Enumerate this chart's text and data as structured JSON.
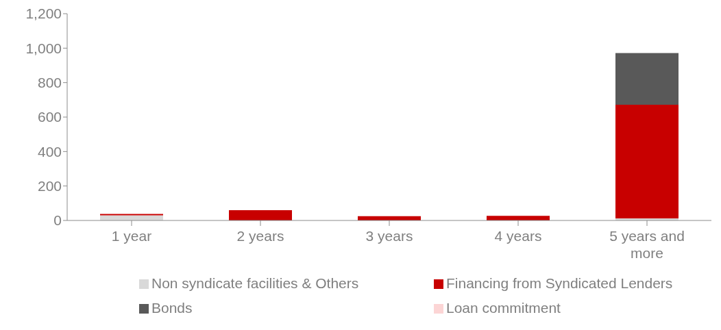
{
  "chart_data": {
    "type": "bar",
    "stacked": true,
    "categories": [
      "1 year",
      "2 years",
      "3 years",
      "4 years",
      "5 years and more"
    ],
    "series": [
      {
        "name": "Non syndicate facilities & Others",
        "color": "#d9d9d9",
        "values": [
          30,
          0,
          0,
          0,
          12
        ]
      },
      {
        "name": "Financing from Syndicated Lenders",
        "color": "#c80000",
        "values": [
          8,
          60,
          25,
          27,
          660
        ]
      },
      {
        "name": "Bonds",
        "color": "#595959",
        "values": [
          0,
          0,
          0,
          0,
          300
        ]
      },
      {
        "name": "Loan commitment",
        "color": "#fcd5d5",
        "values": [
          0,
          0,
          0,
          0,
          0
        ]
      }
    ],
    "ylim": [
      0,
      1200
    ],
    "yticks": [
      0,
      200,
      400,
      600,
      800,
      {
        "value": 1000,
        "label": "1,000"
      },
      {
        "value": 1200,
        "label": "1,200"
      }
    ],
    "grid": false,
    "legend": "bottom"
  }
}
